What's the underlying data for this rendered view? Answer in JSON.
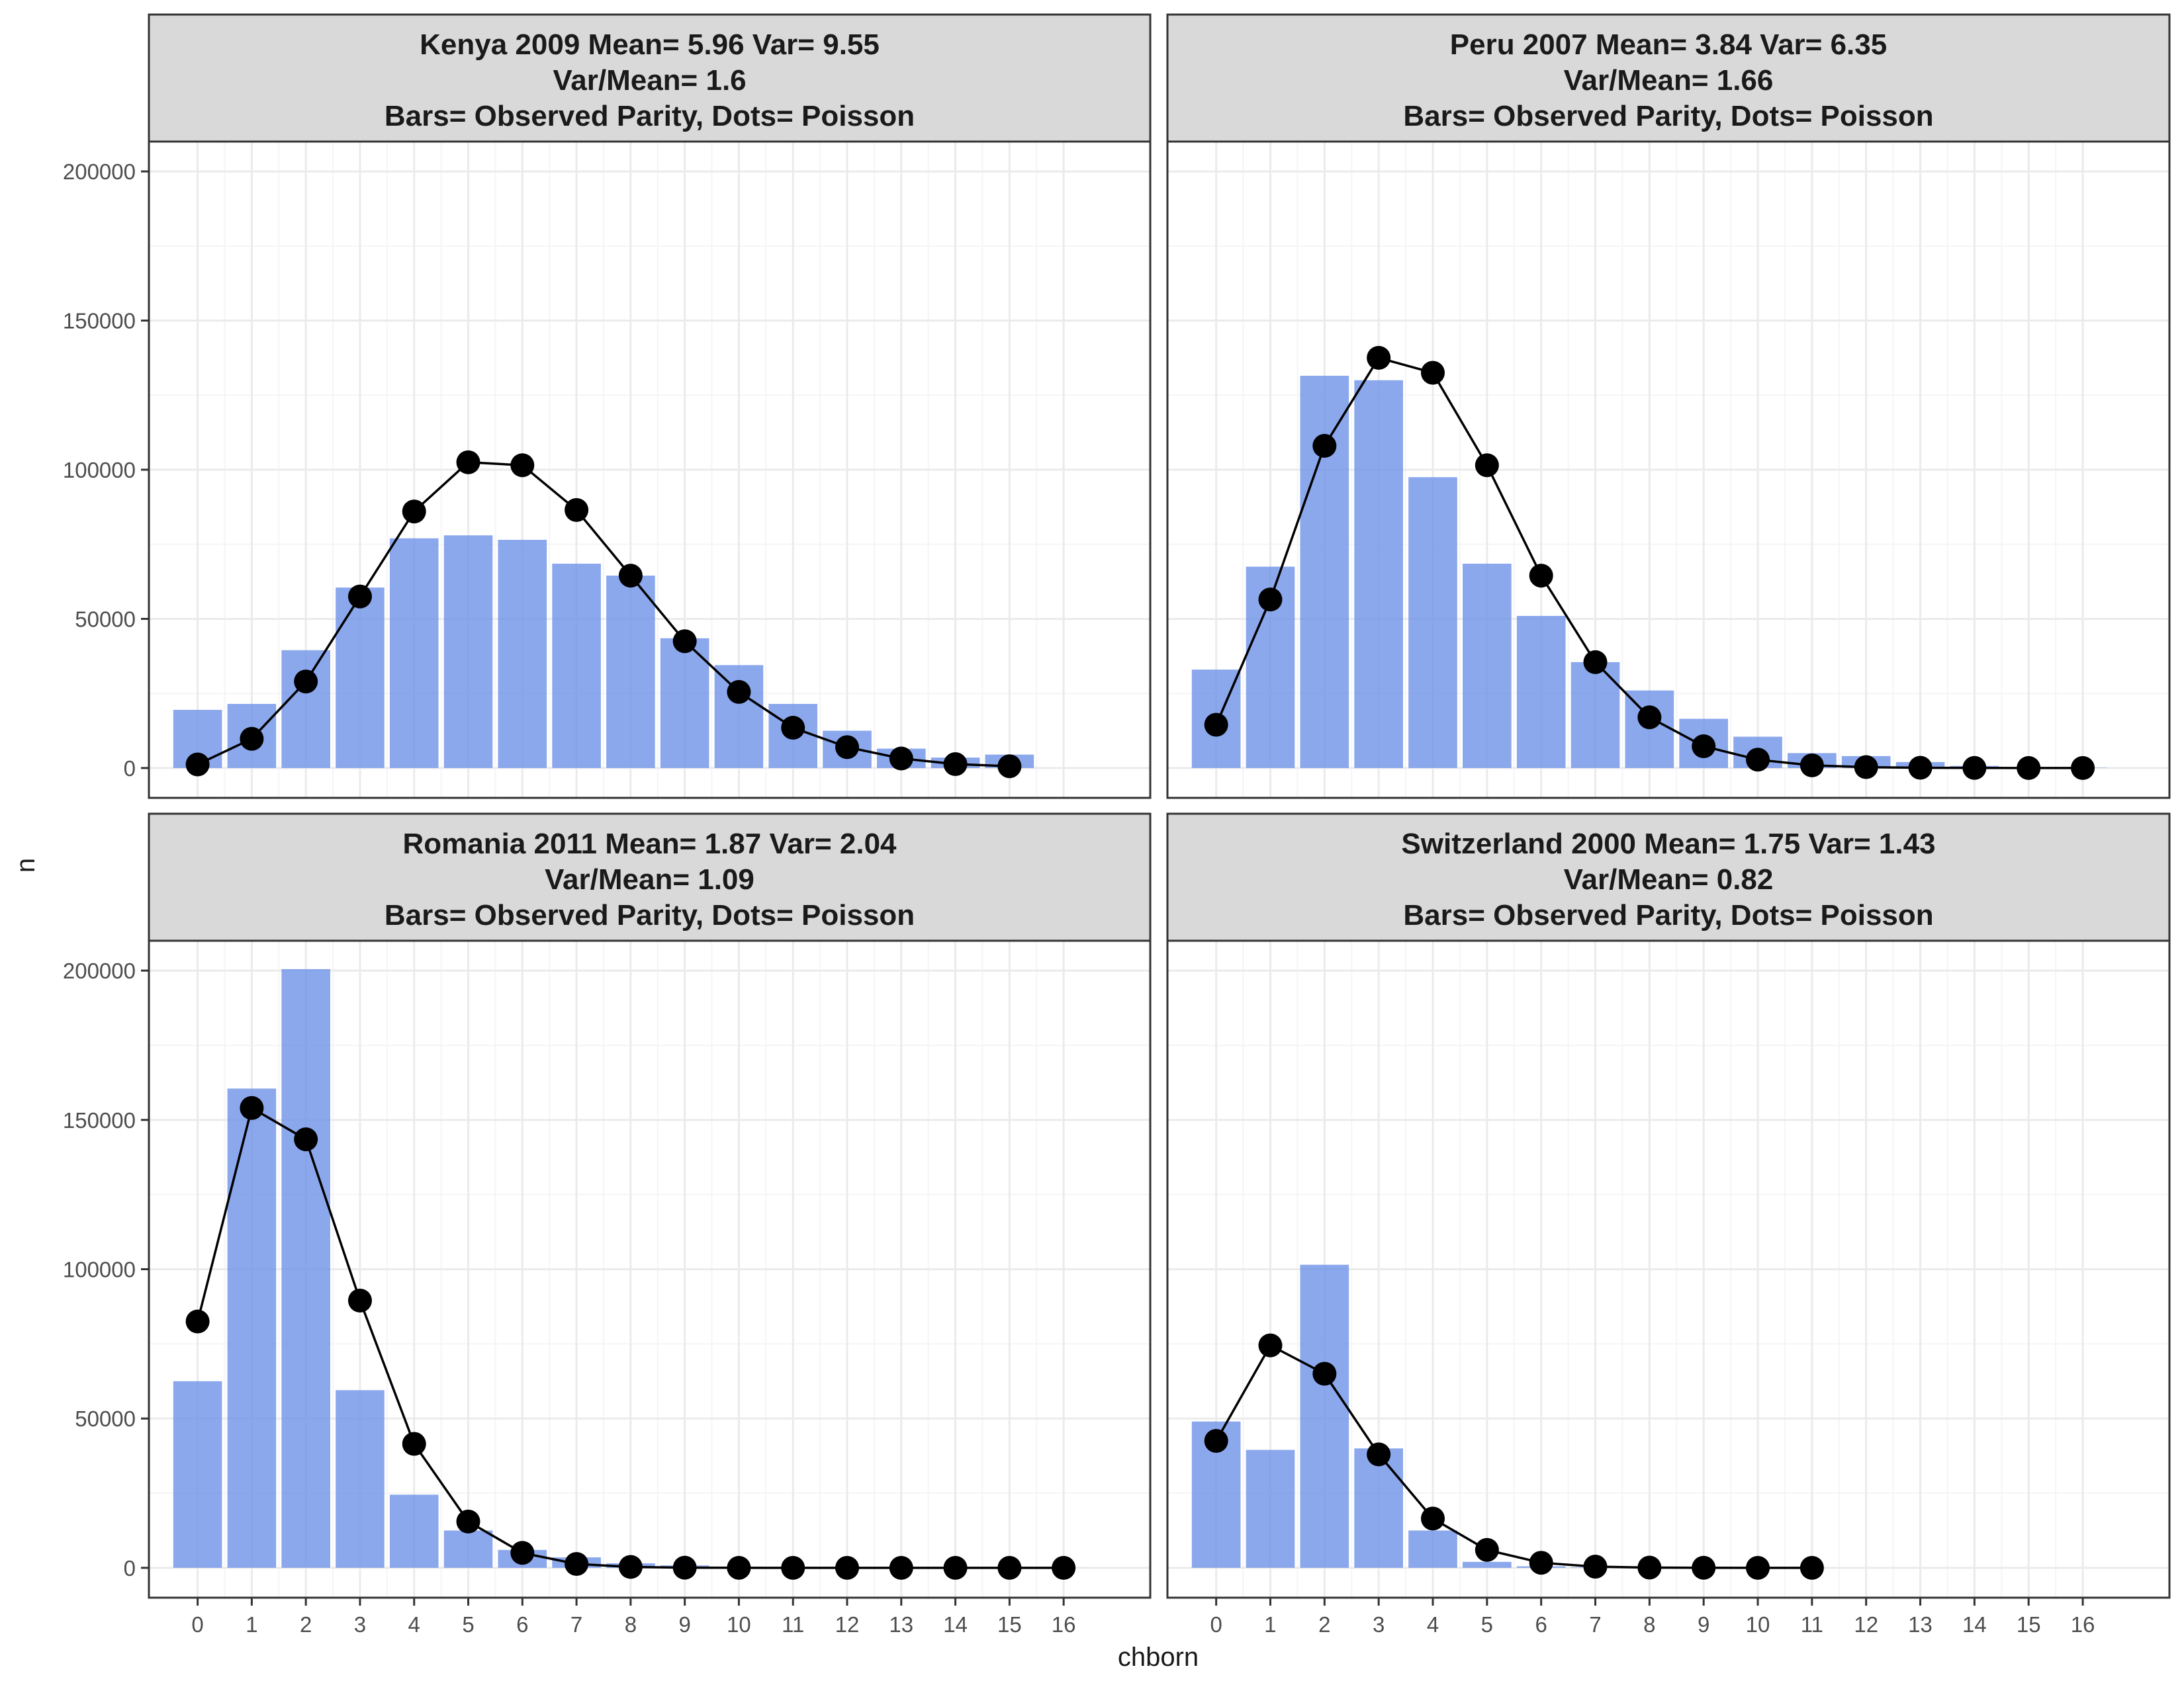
{
  "figure": {
    "xlabel": "chborn",
    "ylabel": "n"
  },
  "colors": {
    "bar": "#6A8FE8",
    "dot": "#000000",
    "strip_bg": "#D9D9D9",
    "panel_border": "#333333",
    "grid_major": "#EBEBEB",
    "grid_minor": "#F5F5F5"
  },
  "chart_data": [
    {
      "type": "bar",
      "title_lines": [
        "Kenya 2009 Mean= 5.96 Var= 9.55",
        "Var/Mean= 1.6",
        "Bars= Observed Parity, Dots= Poisson"
      ],
      "x": [
        0,
        1,
        2,
        3,
        4,
        5,
        6,
        7,
        8,
        9,
        10,
        11,
        12,
        13,
        14,
        15
      ],
      "observed": [
        19500,
        21500,
        39500,
        60500,
        77000,
        78000,
        76500,
        68500,
        64500,
        43500,
        34500,
        21500,
        12500,
        6500,
        3500,
        4500
      ],
      "poisson_x": [
        0,
        1,
        2,
        3,
        4,
        5,
        6,
        7,
        8,
        9,
        10,
        11,
        12,
        13,
        14,
        15
      ],
      "poisson": [
        1200,
        9800,
        29000,
        57500,
        86000,
        102500,
        101500,
        86500,
        64500,
        42500,
        25500,
        13500,
        7000,
        3200,
        1300,
        600
      ],
      "xlim": [
        -0.9,
        17.6
      ],
      "ylim": [
        -10000,
        210000
      ],
      "xticks": [
        0,
        1,
        2,
        3,
        4,
        5,
        6,
        7,
        8,
        9,
        10,
        11,
        12,
        13,
        14,
        15,
        16
      ],
      "yticks": [
        0,
        50000,
        100000,
        150000,
        200000
      ]
    },
    {
      "type": "bar",
      "title_lines": [
        "Peru 2007 Mean= 3.84 Var= 6.35",
        "Var/Mean= 1.66",
        "Bars= Observed Parity, Dots= Poisson"
      ],
      "x": [
        0,
        1,
        2,
        3,
        4,
        5,
        6,
        7,
        8,
        9,
        10,
        11,
        12,
        13,
        14,
        15,
        16
      ],
      "observed": [
        33000,
        67500,
        131500,
        130000,
        97500,
        68500,
        51000,
        35500,
        26000,
        16500,
        10500,
        5000,
        4000,
        2000,
        700,
        300,
        100
      ],
      "poisson_x": [
        0,
        1,
        2,
        3,
        4,
        5,
        6,
        7,
        8,
        9,
        10,
        11,
        12,
        13,
        14,
        15,
        16
      ],
      "poisson": [
        14500,
        56500,
        108000,
        137500,
        132500,
        101500,
        64500,
        35500,
        17000,
        7300,
        2800,
        900,
        300,
        90,
        25,
        6,
        1
      ],
      "xlim": [
        -0.9,
        17.6
      ],
      "ylim": [
        -10000,
        210000
      ],
      "xticks": [
        0,
        1,
        2,
        3,
        4,
        5,
        6,
        7,
        8,
        9,
        10,
        11,
        12,
        13,
        14,
        15,
        16
      ],
      "yticks": [
        0,
        50000,
        100000,
        150000,
        200000
      ]
    },
    {
      "type": "bar",
      "title_lines": [
        "Romania 2011 Mean= 1.87 Var= 2.04",
        "Var/Mean= 1.09",
        "Bars= Observed Parity, Dots= Poisson"
      ],
      "x": [
        0,
        1,
        2,
        3,
        4,
        5,
        6,
        7,
        8,
        9,
        10,
        11,
        12,
        13,
        14,
        15,
        16
      ],
      "observed": [
        62500,
        160500,
        200500,
        59500,
        24500,
        12500,
        6000,
        3500,
        1500,
        800,
        400,
        200,
        100,
        50,
        30,
        20,
        10
      ],
      "poisson_x": [
        0,
        1,
        2,
        3,
        4,
        5,
        6,
        7,
        8,
        9,
        10,
        11,
        12,
        13,
        14,
        15,
        16
      ],
      "poisson": [
        82500,
        154000,
        143500,
        89500,
        41500,
        15500,
        5000,
        1300,
        300,
        60,
        10,
        2,
        0,
        0,
        0,
        0,
        0
      ],
      "xlim": [
        -0.9,
        17.6
      ],
      "ylim": [
        -10000,
        210000
      ],
      "xticks": [
        0,
        1,
        2,
        3,
        4,
        5,
        6,
        7,
        8,
        9,
        10,
        11,
        12,
        13,
        14,
        15,
        16
      ],
      "yticks": [
        0,
        50000,
        100000,
        150000,
        200000
      ]
    },
    {
      "type": "bar",
      "title_lines": [
        "Switzerland 2000 Mean= 1.75 Var= 1.43",
        "Var/Mean= 0.82",
        "Bars= Observed Parity, Dots= Poisson"
      ],
      "x": [
        0,
        1,
        2,
        3,
        4,
        5,
        6,
        7,
        8,
        9,
        10,
        11
      ],
      "observed": [
        49000,
        39500,
        101500,
        40000,
        12500,
        2000,
        500,
        150,
        50,
        20,
        10,
        5
      ],
      "poisson_x": [
        0,
        1,
        2,
        3,
        4,
        5,
        6,
        7,
        8,
        9,
        10,
        11
      ],
      "poisson": [
        42500,
        74500,
        65000,
        38000,
        16500,
        6000,
        1700,
        400,
        90,
        20,
        3,
        0
      ],
      "xlim": [
        -0.9,
        17.6
      ],
      "ylim": [
        -10000,
        210000
      ],
      "xticks": [
        0,
        1,
        2,
        3,
        4,
        5,
        6,
        7,
        8,
        9,
        10,
        11,
        12,
        13,
        14,
        15,
        16
      ],
      "yticks": [
        0,
        50000,
        100000,
        150000,
        200000
      ]
    }
  ]
}
